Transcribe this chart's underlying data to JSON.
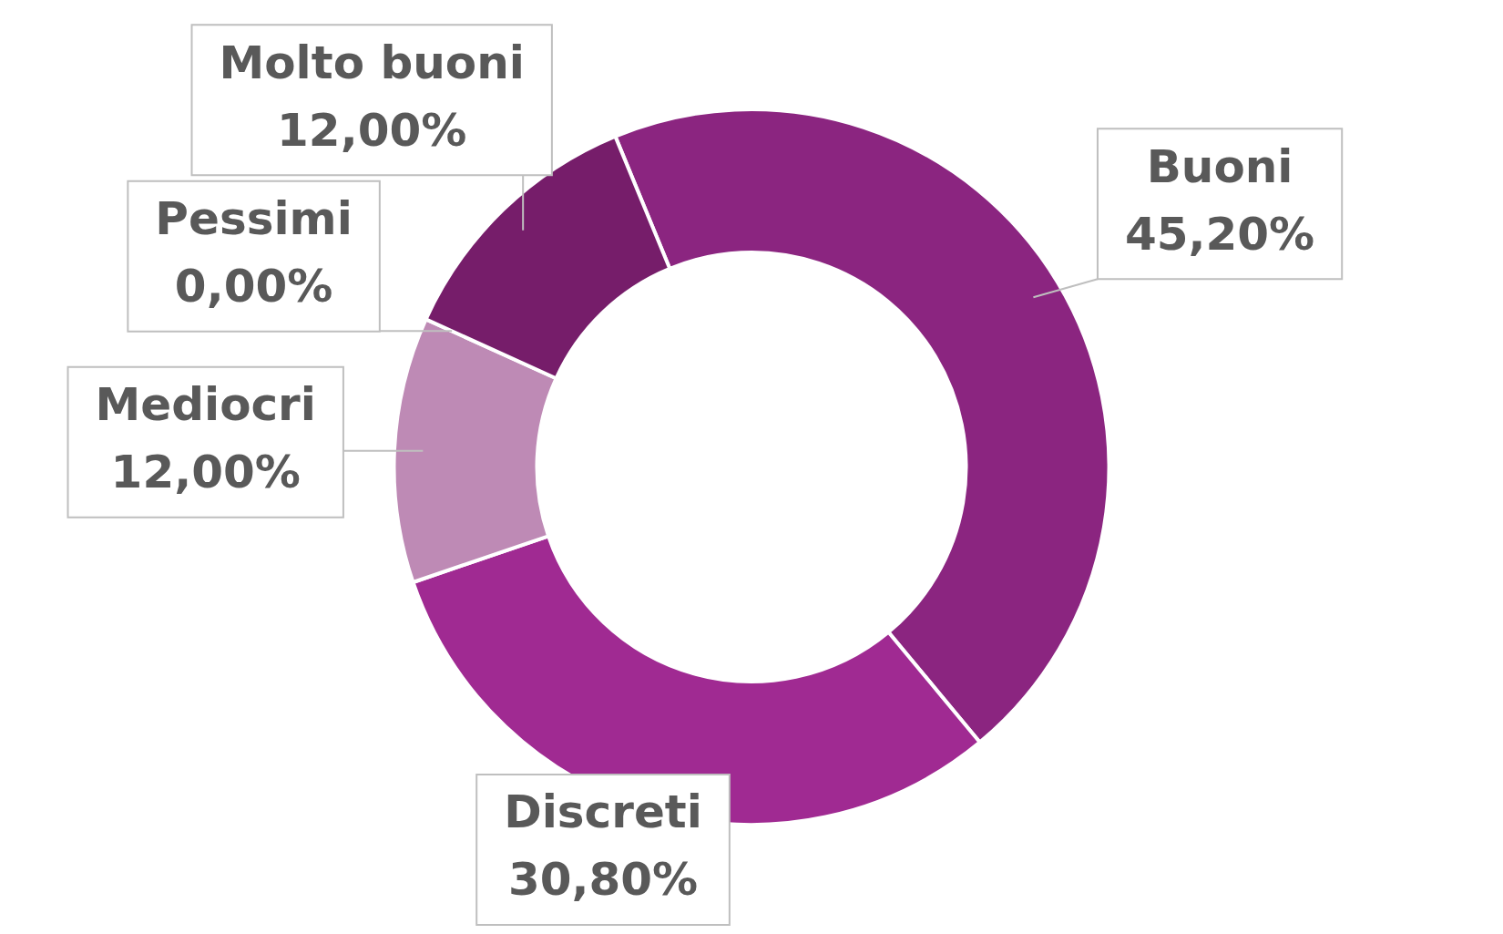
{
  "chart_data": {
    "type": "donut",
    "categories": [
      "Buoni",
      "Discreti",
      "Mediocri",
      "Pessimi",
      "Molto buoni"
    ],
    "values": [
      45.2,
      30.8,
      12,
      0,
      12
    ],
    "colors": [
      "#8b2580",
      "#a02a92",
      "#be8ab5",
      "#d6b3cf",
      "#761d6a"
    ],
    "value_labels": [
      "45,20%",
      "30,80%",
      "12,00%",
      "0,00%",
      "12,00%"
    ],
    "legend": false
  }
}
